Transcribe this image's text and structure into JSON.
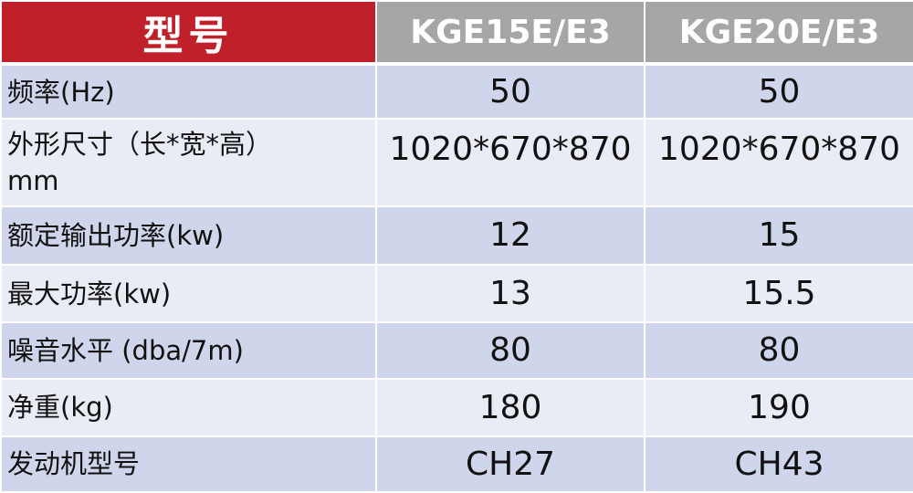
{
  "header": {
    "title": "型号",
    "models": [
      "KGE15E/E3",
      "KGE20E/E3"
    ]
  },
  "rows": [
    {
      "label": "频率(Hz)",
      "values": [
        "50",
        "50"
      ]
    },
    {
      "label": "外形尺寸（长*宽*高）mm",
      "values": [
        "1020*670*870",
        "1020*670*870"
      ]
    },
    {
      "label": "额定输出功率(kw)",
      "values": [
        "12",
        "15"
      ]
    },
    {
      "label": "最大功率(kw)",
      "values": [
        "13",
        "15.5"
      ]
    },
    {
      "label": "噪音水平 (dba/7m)",
      "values": [
        "80",
        "80"
      ]
    },
    {
      "label": "净重(kg)",
      "values": [
        "180",
        "190"
      ]
    },
    {
      "label": "发动机型号",
      "values": [
        "CH27",
        "CH43"
      ]
    }
  ],
  "colors": {
    "header_red": "#c0202a",
    "header_grey": "#a6a6a6",
    "row_dark": "#cfd5ea",
    "row_light": "#e9ebf5"
  }
}
